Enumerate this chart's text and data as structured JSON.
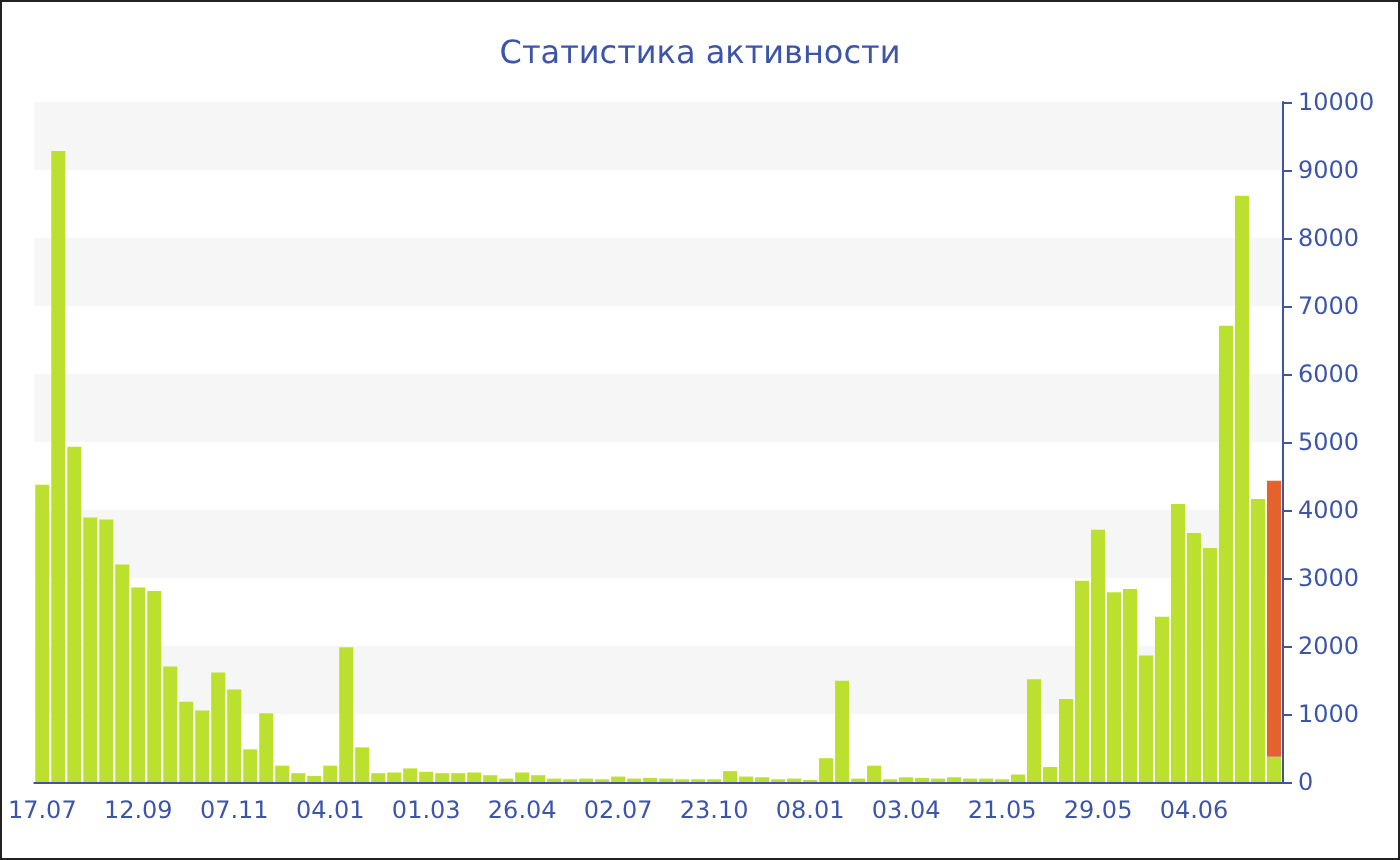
{
  "chart_data": {
    "type": "bar",
    "title": "Статистика активности",
    "categories": [
      "17.07",
      null,
      null,
      null,
      null,
      null,
      "12.09",
      null,
      null,
      null,
      null,
      null,
      "07.11",
      null,
      null,
      null,
      null,
      null,
      "04.01",
      null,
      null,
      null,
      null,
      null,
      "01.03",
      null,
      null,
      null,
      null,
      null,
      "26.04",
      null,
      null,
      null,
      null,
      null,
      "02.07",
      null,
      null,
      null,
      null,
      null,
      "23.10",
      null,
      null,
      null,
      null,
      null,
      "08.01",
      null,
      null,
      null,
      null,
      null,
      "03.04",
      null,
      null,
      null,
      null,
      null,
      "21.05",
      null,
      null,
      null,
      null,
      null,
      "29.05",
      null,
      null,
      null,
      null,
      null,
      "04.06",
      null,
      null,
      null,
      null,
      null
    ],
    "stacked": true,
    "series": [
      {
        "color": "#bce02e",
        "values": [
          4370,
          9280,
          4930,
          3890,
          3860,
          3200,
          2860,
          2810,
          1700,
          1180,
          1050,
          1610,
          1360,
          480,
          1010,
          240,
          130,
          90,
          240,
          1980,
          510,
          130,
          140,
          200,
          150,
          130,
          130,
          140,
          100,
          50,
          140,
          100,
          50,
          40,
          50,
          40,
          80,
          50,
          60,
          50,
          40,
          40,
          40,
          160,
          80,
          70,
          40,
          50,
          30,
          350,
          1490,
          50,
          240,
          40,
          70,
          60,
          50,
          70,
          50,
          50,
          40,
          110,
          1510,
          220,
          1220,
          2960,
          3710,
          2790,
          2840,
          1860,
          2430,
          4090,
          3660,
          3440,
          6710,
          8620,
          4160,
          370
        ]
      },
      {
        "color": "#e4622c",
        "values": [
          null,
          null,
          null,
          null,
          null,
          null,
          null,
          null,
          null,
          null,
          null,
          null,
          null,
          null,
          null,
          null,
          null,
          null,
          null,
          null,
          null,
          null,
          null,
          null,
          null,
          null,
          null,
          null,
          null,
          null,
          null,
          null,
          null,
          null,
          null,
          null,
          null,
          null,
          null,
          null,
          null,
          null,
          null,
          null,
          null,
          null,
          null,
          null,
          null,
          null,
          null,
          null,
          null,
          null,
          null,
          null,
          null,
          null,
          null,
          null,
          null,
          null,
          null,
          null,
          null,
          null,
          null,
          null,
          null,
          null,
          null,
          null,
          null,
          null,
          null,
          null,
          null,
          4060
        ]
      }
    ],
    "ylim": [
      0,
      10000
    ],
    "yticks": [
      0,
      1000,
      2000,
      3000,
      4000,
      5000,
      6000,
      7000,
      8000,
      9000,
      10000
    ],
    "grid": false
  }
}
